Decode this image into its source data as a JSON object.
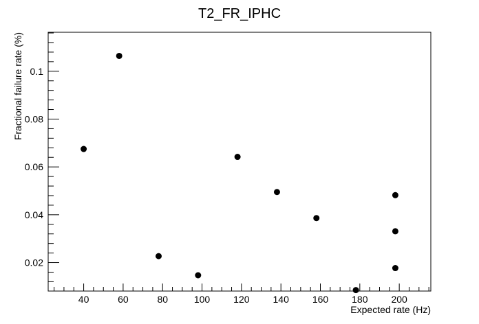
{
  "chart_data": {
    "type": "scatter",
    "title": "T2_FR_IPHC",
    "xlabel": "Expected rate (Hz)",
    "ylabel": "Fractional failure rate (%)",
    "xlim": [
      22,
      216
    ],
    "ylim": [
      0.0081,
      0.1163
    ],
    "x_ticks": [
      40,
      60,
      80,
      100,
      120,
      140,
      160,
      180,
      200
    ],
    "x_tick_labels": [
      "40",
      "60",
      "80",
      "100",
      "120",
      "140",
      "160",
      "180",
      "200"
    ],
    "y_ticks": [
      0.02,
      0.04,
      0.06,
      0.08,
      0.1
    ],
    "y_tick_labels": [
      "0.02",
      "0.04",
      "0.06",
      "0.08",
      "0.1"
    ],
    "grid": false,
    "points": [
      {
        "x": 40,
        "y": 0.0675
      },
      {
        "x": 58,
        "y": 0.1064
      },
      {
        "x": 78,
        "y": 0.0227
      },
      {
        "x": 98,
        "y": 0.0147
      },
      {
        "x": 118,
        "y": 0.0642
      },
      {
        "x": 138,
        "y": 0.0495
      },
      {
        "x": 158,
        "y": 0.0386
      },
      {
        "x": 178,
        "y": 0.0085
      },
      {
        "x": 198,
        "y": 0.0482
      },
      {
        "x": 198,
        "y": 0.0331
      },
      {
        "x": 198,
        "y": 0.0177
      }
    ]
  }
}
